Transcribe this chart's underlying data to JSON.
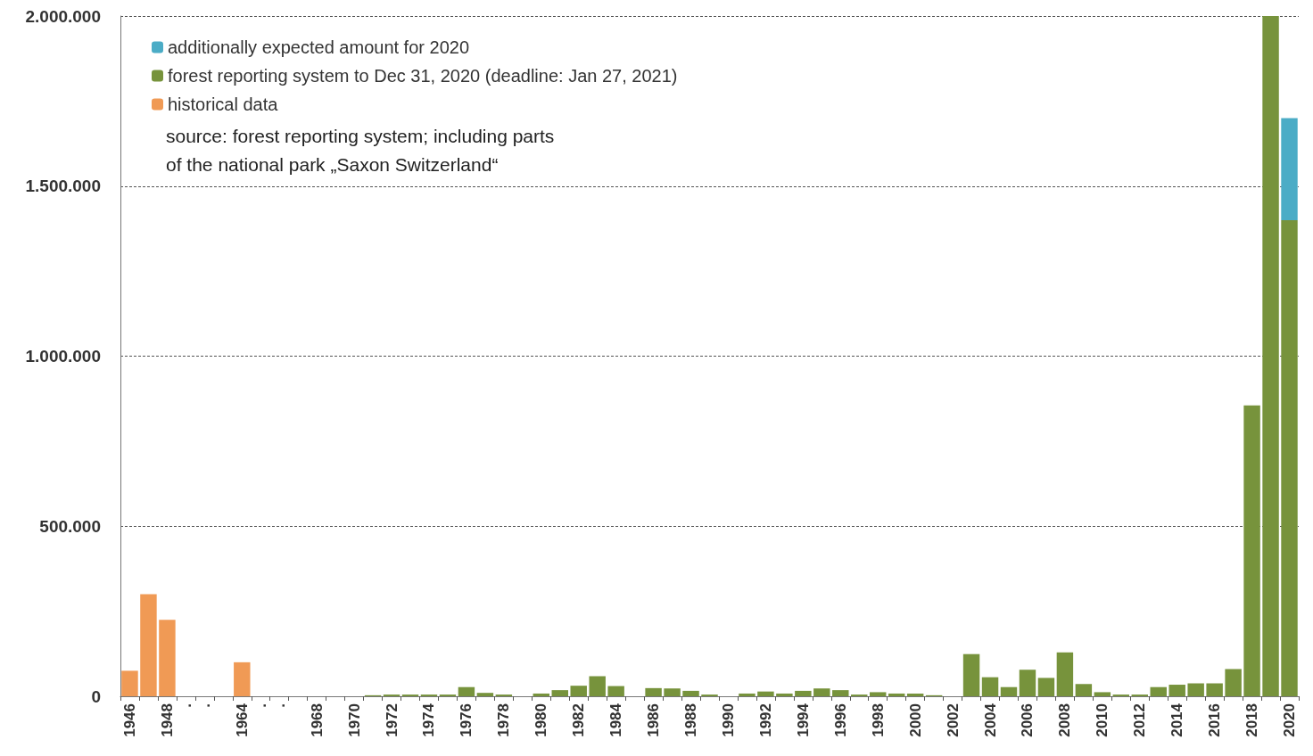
{
  "chart_data": {
    "type": "bar",
    "stacked": true,
    "categories": [
      "1946",
      null,
      "1948",
      ".",
      ".",
      null,
      "1964",
      ".",
      ".",
      null,
      "1968",
      null,
      "1970",
      null,
      "1972",
      null,
      "1974",
      null,
      "1976",
      null,
      "1978",
      null,
      "1980",
      null,
      "1982",
      null,
      "1984",
      null,
      "1986",
      null,
      "1988",
      null,
      "1990",
      null,
      "1992",
      null,
      "1994",
      null,
      "1996",
      null,
      "1998",
      null,
      "2000",
      null,
      "2002",
      null,
      "2004",
      null,
      "2006",
      null,
      "2008",
      null,
      "2010",
      null,
      "2012",
      null,
      "2014",
      null,
      "2016",
      null,
      "2018",
      null,
      "2020"
    ],
    "series": [
      {
        "name": "historical data",
        "color": "#f09a55",
        "values": [
          75000,
          300000,
          225000,
          null,
          null,
          null,
          100000,
          null,
          null,
          null,
          null,
          null,
          null,
          null,
          null,
          null,
          null,
          null,
          null,
          null,
          null,
          null,
          null,
          null,
          null,
          null,
          null,
          null,
          null,
          null,
          null,
          null,
          null,
          null,
          null,
          null,
          null,
          null,
          null,
          null,
          null,
          null,
          null,
          null,
          null,
          null,
          null,
          null,
          null,
          null,
          null,
          null,
          null,
          null,
          null,
          null,
          null,
          null,
          null,
          null,
          null,
          null,
          null
        ]
      },
      {
        "name": "forest reporting system to Dec 31, 2020 (deadline: Jan 27, 2021)",
        "color": "#77933c",
        "values": [
          null,
          null,
          null,
          null,
          null,
          null,
          null,
          null,
          null,
          null,
          null,
          null,
          null,
          3000,
          5000,
          5000,
          5000,
          5000,
          27000,
          10000,
          5000,
          null,
          8000,
          18000,
          31000,
          59000,
          30000,
          null,
          24000,
          23000,
          16000,
          5000,
          null,
          8000,
          14000,
          8000,
          16000,
          23000,
          18000,
          5000,
          12000,
          8000,
          8000,
          3000,
          null,
          124000,
          56000,
          27000,
          78000,
          54000,
          129000,
          36000,
          12000,
          5000,
          5000,
          27000,
          34000,
          38000,
          38000,
          80000,
          855000,
          2000000,
          1400000
        ]
      },
      {
        "name": "additionally expected amount for 2020",
        "color": "#4bacc6",
        "values": [
          null,
          null,
          null,
          null,
          null,
          null,
          null,
          null,
          null,
          null,
          null,
          null,
          null,
          null,
          null,
          null,
          null,
          null,
          null,
          null,
          null,
          null,
          null,
          null,
          null,
          null,
          null,
          null,
          null,
          null,
          null,
          null,
          null,
          null,
          null,
          null,
          null,
          null,
          null,
          null,
          null,
          null,
          null,
          null,
          null,
          null,
          null,
          null,
          null,
          null,
          null,
          null,
          null,
          null,
          null,
          null,
          null,
          null,
          null,
          null,
          null,
          null,
          300000
        ]
      }
    ],
    "ylim": [
      0,
      2000000
    ],
    "yticks": [
      {
        "value": 0,
        "label": "0"
      },
      {
        "value": 500000,
        "label": "500.000"
      },
      {
        "value": 1000000,
        "label": "1.000.000"
      },
      {
        "value": 1500000,
        "label": "1.500.000"
      },
      {
        "value": 2000000,
        "label": "2.000.000"
      }
    ],
    "grid": "y",
    "legend": "top left",
    "annotations": [
      "source: forest reporting system; including parts\nof the national park „Saxon Switzerland“"
    ]
  }
}
